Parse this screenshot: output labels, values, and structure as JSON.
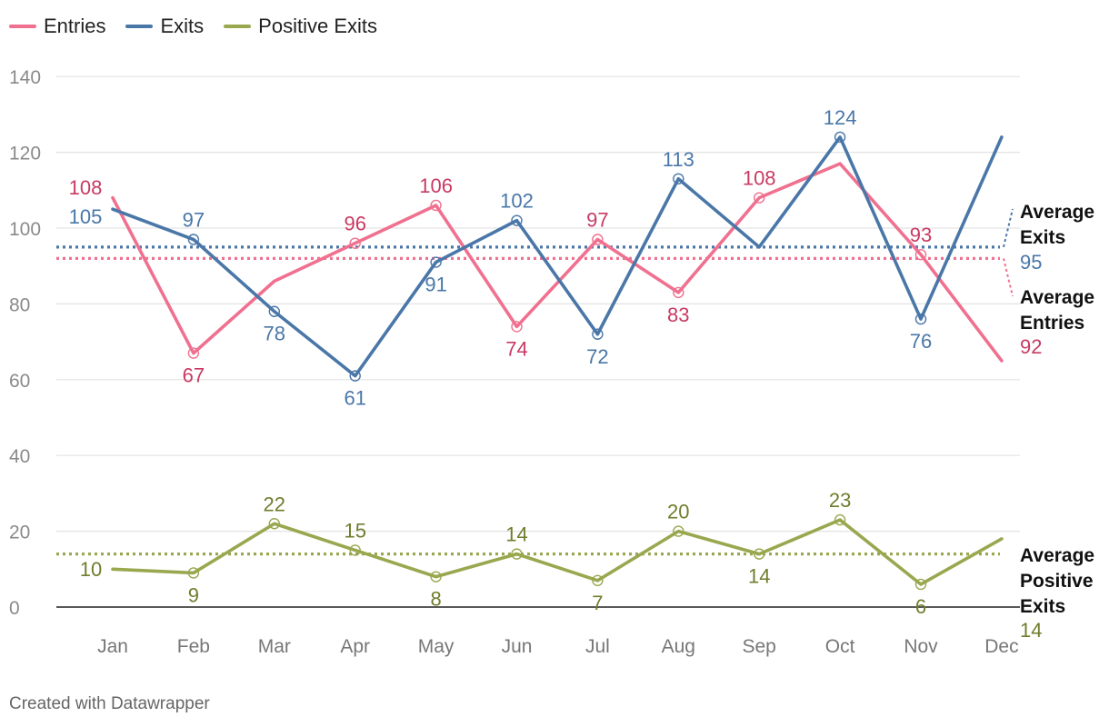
{
  "legend": [
    {
      "label": "Entries",
      "color": "#f0708f"
    },
    {
      "label": "Exits",
      "color": "#4a77a8"
    },
    {
      "label": "Positive Exits",
      "color": "#99a84f"
    }
  ],
  "credit": "Created with Datawrapper",
  "chart_data": {
    "type": "line",
    "title": "",
    "xlabel": "",
    "ylabel": "",
    "categories": [
      "Jan",
      "Feb",
      "Mar",
      "Apr",
      "May",
      "Jun",
      "Jul",
      "Aug",
      "Sep",
      "Oct",
      "Nov",
      "Dec"
    ],
    "ylim": [
      0,
      140
    ],
    "yticks": [
      0,
      20,
      40,
      60,
      80,
      100,
      120,
      140
    ],
    "grid": true,
    "legend_position": "top-left",
    "series": [
      {
        "name": "Entries",
        "color": "#f0708f",
        "label_color": "#c83a63",
        "values": [
          108,
          67,
          86,
          96,
          106,
          74,
          97,
          83,
          108,
          117,
          93,
          65
        ],
        "labels": [
          "108",
          "67",
          null,
          "96",
          "106",
          "74",
          "97",
          "83",
          "108",
          null,
          "93",
          null
        ],
        "label_pos": [
          "left",
          "below",
          null,
          "above",
          "above",
          "below",
          "above",
          "below",
          "above",
          null,
          "above",
          null
        ],
        "markers": [
          false,
          true,
          false,
          true,
          true,
          true,
          true,
          true,
          true,
          false,
          true,
          false
        ],
        "average": {
          "value": 92,
          "title": [
            "Average",
            "Entries"
          ],
          "label": "92"
        }
      },
      {
        "name": "Exits",
        "color": "#4a77a8",
        "label_color": "#4a77a8",
        "values": [
          105,
          97,
          78,
          61,
          91,
          102,
          72,
          113,
          95,
          124,
          76,
          124
        ],
        "labels": [
          "105",
          "97",
          "78",
          "61",
          "91",
          "102",
          "72",
          "113",
          null,
          "124",
          "76",
          null
        ],
        "label_pos": [
          "left",
          "above",
          "below",
          "below",
          "below",
          "above",
          "below",
          "above",
          null,
          "above",
          "below",
          null
        ],
        "markers": [
          false,
          true,
          true,
          true,
          true,
          true,
          true,
          true,
          false,
          true,
          true,
          false
        ],
        "average": {
          "value": 95,
          "title": [
            "Average",
            "Exits"
          ],
          "label": "95"
        }
      },
      {
        "name": "Positive Exits",
        "color": "#99a84f",
        "label_color": "#6f7d2c",
        "values": [
          10,
          9,
          22,
          15,
          8,
          14,
          7,
          20,
          14,
          23,
          6,
          18
        ],
        "labels": [
          "10",
          "9",
          "22",
          "15",
          "8",
          "14",
          "7",
          "20",
          "14",
          "23",
          "6",
          null
        ],
        "label_pos": [
          "left",
          "below",
          "above",
          "above",
          "below",
          "above",
          "below",
          "above",
          "below",
          "above",
          "below",
          null
        ],
        "markers": [
          false,
          true,
          true,
          true,
          true,
          true,
          true,
          true,
          true,
          true,
          true,
          false
        ],
        "average": {
          "value": 14,
          "title": [
            "Average",
            "Positive",
            "Exits"
          ],
          "label": "14"
        }
      }
    ]
  }
}
